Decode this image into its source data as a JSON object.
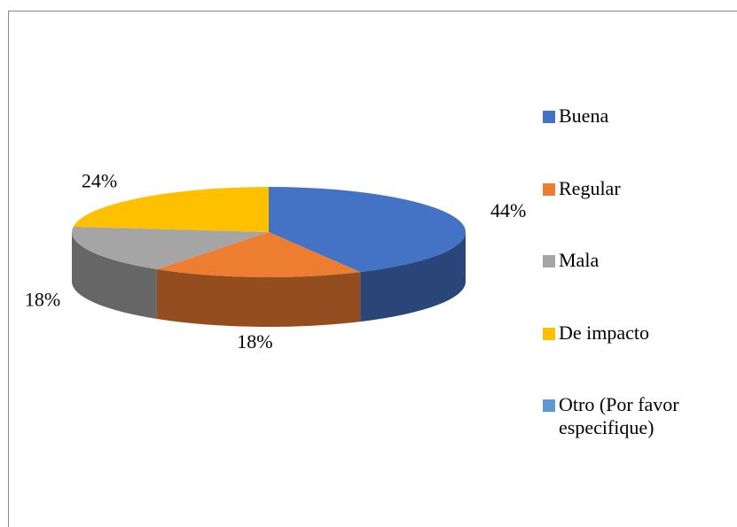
{
  "chart_data": {
    "type": "pie",
    "three_d": true,
    "categories": [
      "Buena",
      "Regular",
      "Mala",
      "De impacto",
      "Otro (Por favor especifique)"
    ],
    "values": [
      44,
      18,
      18,
      24,
      0
    ],
    "value_labels": [
      "44%",
      "18%",
      "18%",
      "24%",
      null
    ],
    "colors": [
      "#4472c4",
      "#ed7d31",
      "#a5a5a5",
      "#ffc000",
      "#5b9bd5"
    ],
    "legend": "right"
  }
}
